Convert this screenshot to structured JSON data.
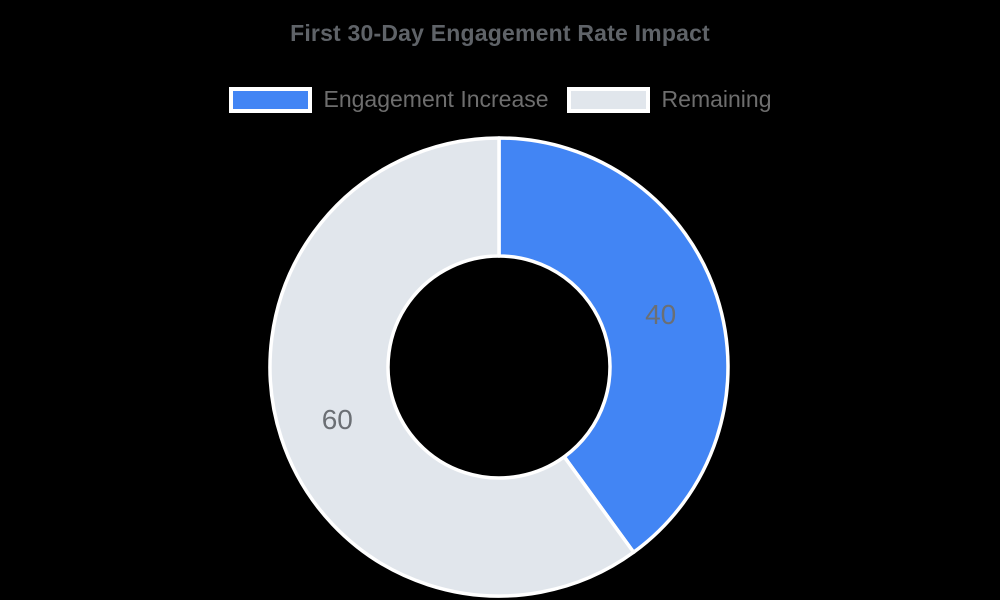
{
  "title": {
    "text": "First 30-Day Engagement Rate Impact",
    "color": "#5f6368"
  },
  "legend": {
    "position": "top",
    "text_color": "#6e6e6e",
    "items": [
      {
        "label": "Engagement Increase",
        "color": "#4285f4"
      },
      {
        "label": "Remaining",
        "color": "#e1e6ec"
      }
    ]
  },
  "chart_data": {
    "type": "pie",
    "subtype": "donut",
    "title": "First 30-Day Engagement Rate Impact",
    "labels": [
      "Engagement Increase",
      "Remaining"
    ],
    "values": [
      40,
      60
    ],
    "slice_labels": [
      "40",
      "60"
    ],
    "colors": [
      "#4285f4",
      "#e1e6ec"
    ],
    "slice_label_color": "#6b6f74",
    "separator_color": "#ffffff",
    "background": "#000000",
    "start_angle_deg": 0,
    "direction": "clockwise",
    "inner_radius_ratio": 0.485,
    "legend_position": "top"
  }
}
